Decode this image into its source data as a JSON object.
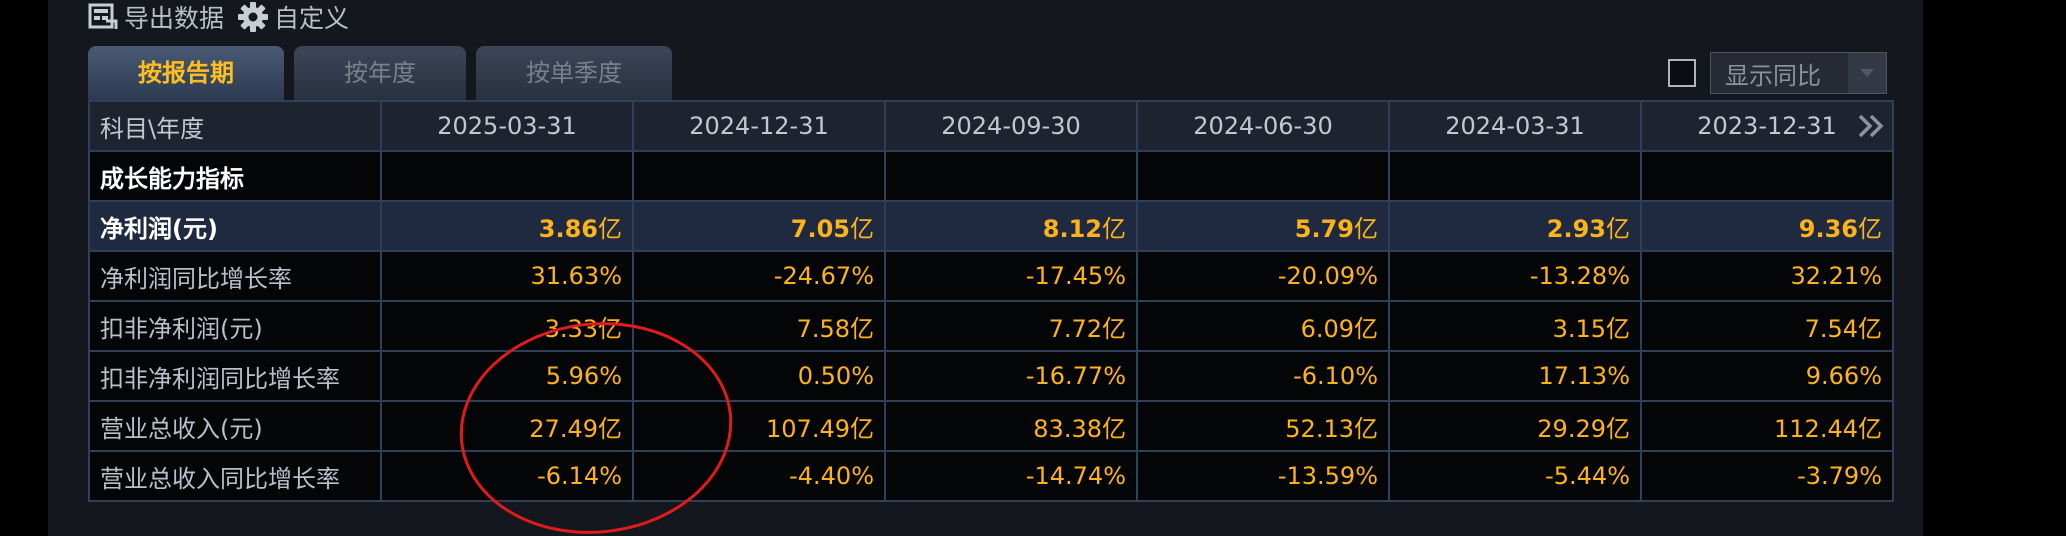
{
  "toolbar": {
    "export_label": "导出数据",
    "export_icon": "export-data-icon",
    "customize_label": "自定义",
    "customize_icon": "gear-icon"
  },
  "tabs": [
    {
      "label": "按报告期",
      "active": true
    },
    {
      "label": "按年度",
      "active": false
    },
    {
      "label": "按单季度",
      "active": false
    }
  ],
  "compare": {
    "checked": false,
    "select_label": "显示同比"
  },
  "table": {
    "header_subject": "科目\\年度",
    "periods": [
      "2025-03-31",
      "2024-12-31",
      "2024-09-30",
      "2024-06-30",
      "2024-03-31",
      "2023-12-31"
    ],
    "section_label": "成长能力指标",
    "rows": [
      {
        "label": "净利润(元)",
        "highlight": true,
        "values": [
          "3.86",
          "7.05",
          "8.12",
          "5.79",
          "2.93",
          "9.36"
        ],
        "unit": "亿"
      },
      {
        "label": "净利润同比增长率",
        "highlight": false,
        "values": [
          "31.63%",
          "-24.67%",
          "-17.45%",
          "-20.09%",
          "-13.28%",
          "32.21%"
        ],
        "unit": ""
      },
      {
        "label": "扣非净利润(元)",
        "highlight": false,
        "values": [
          "3.33",
          "7.58",
          "7.72",
          "6.09",
          "3.15",
          "7.54"
        ],
        "unit": "亿"
      },
      {
        "label": "扣非净利润同比增长率",
        "highlight": false,
        "values": [
          "5.96%",
          "0.50%",
          "-16.77%",
          "-6.10%",
          "17.13%",
          "9.66%"
        ],
        "unit": ""
      },
      {
        "label": "营业总收入(元)",
        "highlight": false,
        "values": [
          "27.49",
          "107.49",
          "83.38",
          "52.13",
          "29.29",
          "112.44"
        ],
        "unit": "亿"
      },
      {
        "label": "营业总收入同比增长率",
        "highlight": false,
        "values": [
          "-6.14%",
          "-4.40%",
          "-14.74%",
          "-13.59%",
          "-5.44%",
          "-3.79%"
        ],
        "unit": ""
      }
    ]
  },
  "colors": {
    "accent": "#ffc01f",
    "value": "#ffb31a",
    "annotation": "#e01b1b"
  }
}
